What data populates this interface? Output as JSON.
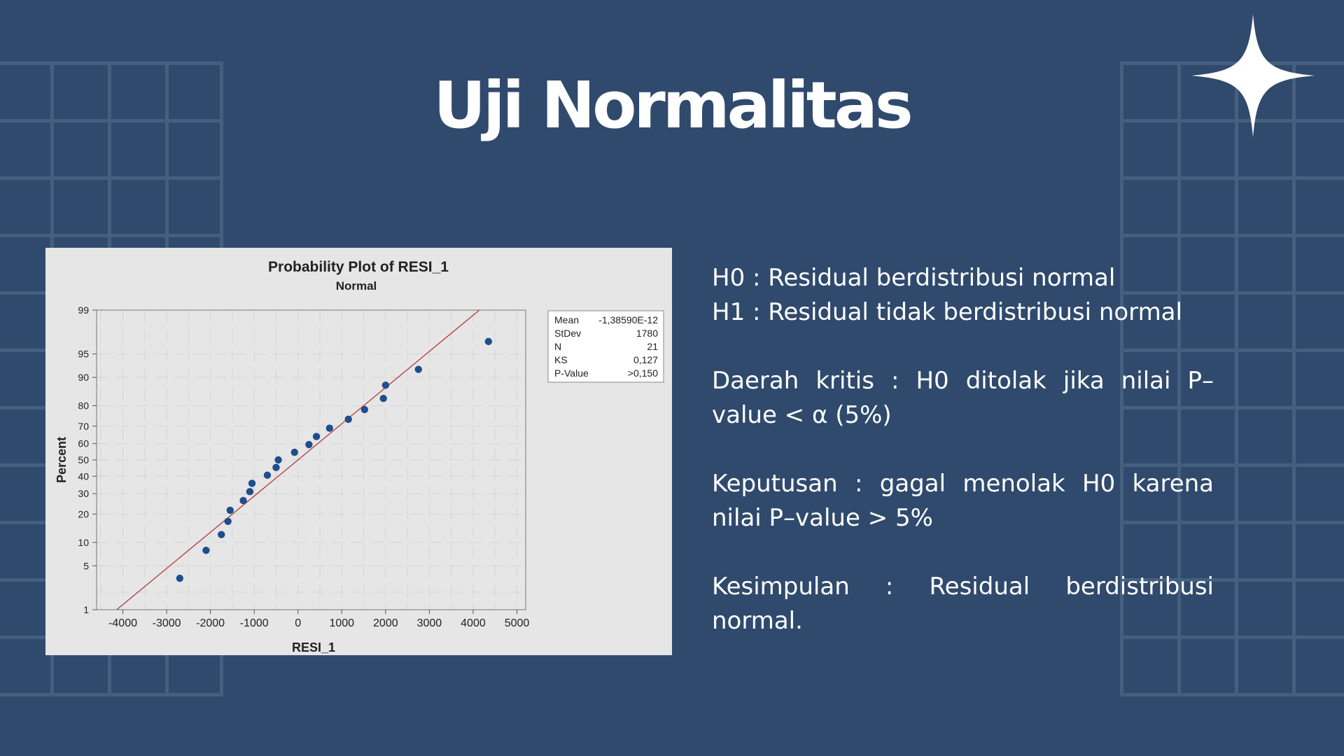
{
  "slide": {
    "title": "Uji Normalitas",
    "h0": "H0 :  Residual berdistribusi normal",
    "h1": "H1  :  Residual tidak berdistribusi normal",
    "critical": "Daerah kritis :  H0 ditolak jika nilai P–value < α (5%)",
    "decision": "Keputusan : gagal menolak H0 karena nilai P–value > 5%",
    "conclusion": "Kesimpulan : Residual berdistribusi normal.",
    "colors": {
      "background": "#304a6d",
      "grid": "#44607f",
      "text": "#ffffff"
    },
    "decoration": "four-point-star-icon"
  },
  "chart_data": {
    "type": "scatter",
    "title": "Probability Plot of RESI_1",
    "subtitle": "Normal",
    "xlabel": "RESI_1",
    "ylabel": "Percent",
    "xlim": [
      -4600,
      5200
    ],
    "x_ticks": [
      -4000,
      -3000,
      -2000,
      -1000,
      0,
      1000,
      2000,
      3000,
      4000,
      5000
    ],
    "y_scale": "normal-probability",
    "y_ticks": [
      1,
      5,
      10,
      20,
      30,
      40,
      50,
      60,
      70,
      80,
      90,
      95,
      99
    ],
    "grid": true,
    "fit_line": {
      "mean": -1.3859e-12,
      "stdev": 1780,
      "color": "#b23a3a"
    },
    "points_color": "#1f4e8c",
    "points": [
      {
        "x": -2700,
        "y": 3.3
      },
      {
        "x": -2100,
        "y": 8.0
      },
      {
        "x": -1750,
        "y": 12.3
      },
      {
        "x": -1600,
        "y": 17.0
      },
      {
        "x": -1550,
        "y": 21.7
      },
      {
        "x": -1250,
        "y": 26.4
      },
      {
        "x": -1100,
        "y": 31.1
      },
      {
        "x": -1050,
        "y": 35.8
      },
      {
        "x": -700,
        "y": 40.6
      },
      {
        "x": -500,
        "y": 45.3
      },
      {
        "x": -450,
        "y": 50.0
      },
      {
        "x": -80,
        "y": 54.7
      },
      {
        "x": 250,
        "y": 59.4
      },
      {
        "x": 420,
        "y": 64.2
      },
      {
        "x": 720,
        "y": 68.9
      },
      {
        "x": 1150,
        "y": 73.6
      },
      {
        "x": 1520,
        "y": 78.3
      },
      {
        "x": 1950,
        "y": 83.0
      },
      {
        "x": 2000,
        "y": 87.7
      },
      {
        "x": 2750,
        "y": 92.0
      },
      {
        "x": 4350,
        "y": 96.7
      }
    ],
    "legend": {
      "placement": "top-right",
      "entries": [
        {
          "label": "Mean",
          "value": "-1,38590E-12"
        },
        {
          "label": "StDev",
          "value": "1780"
        },
        {
          "label": "N",
          "value": "21"
        },
        {
          "label": "KS",
          "value": "0,127"
        },
        {
          "label": "P-Value",
          "value": ">0,150"
        }
      ]
    }
  }
}
